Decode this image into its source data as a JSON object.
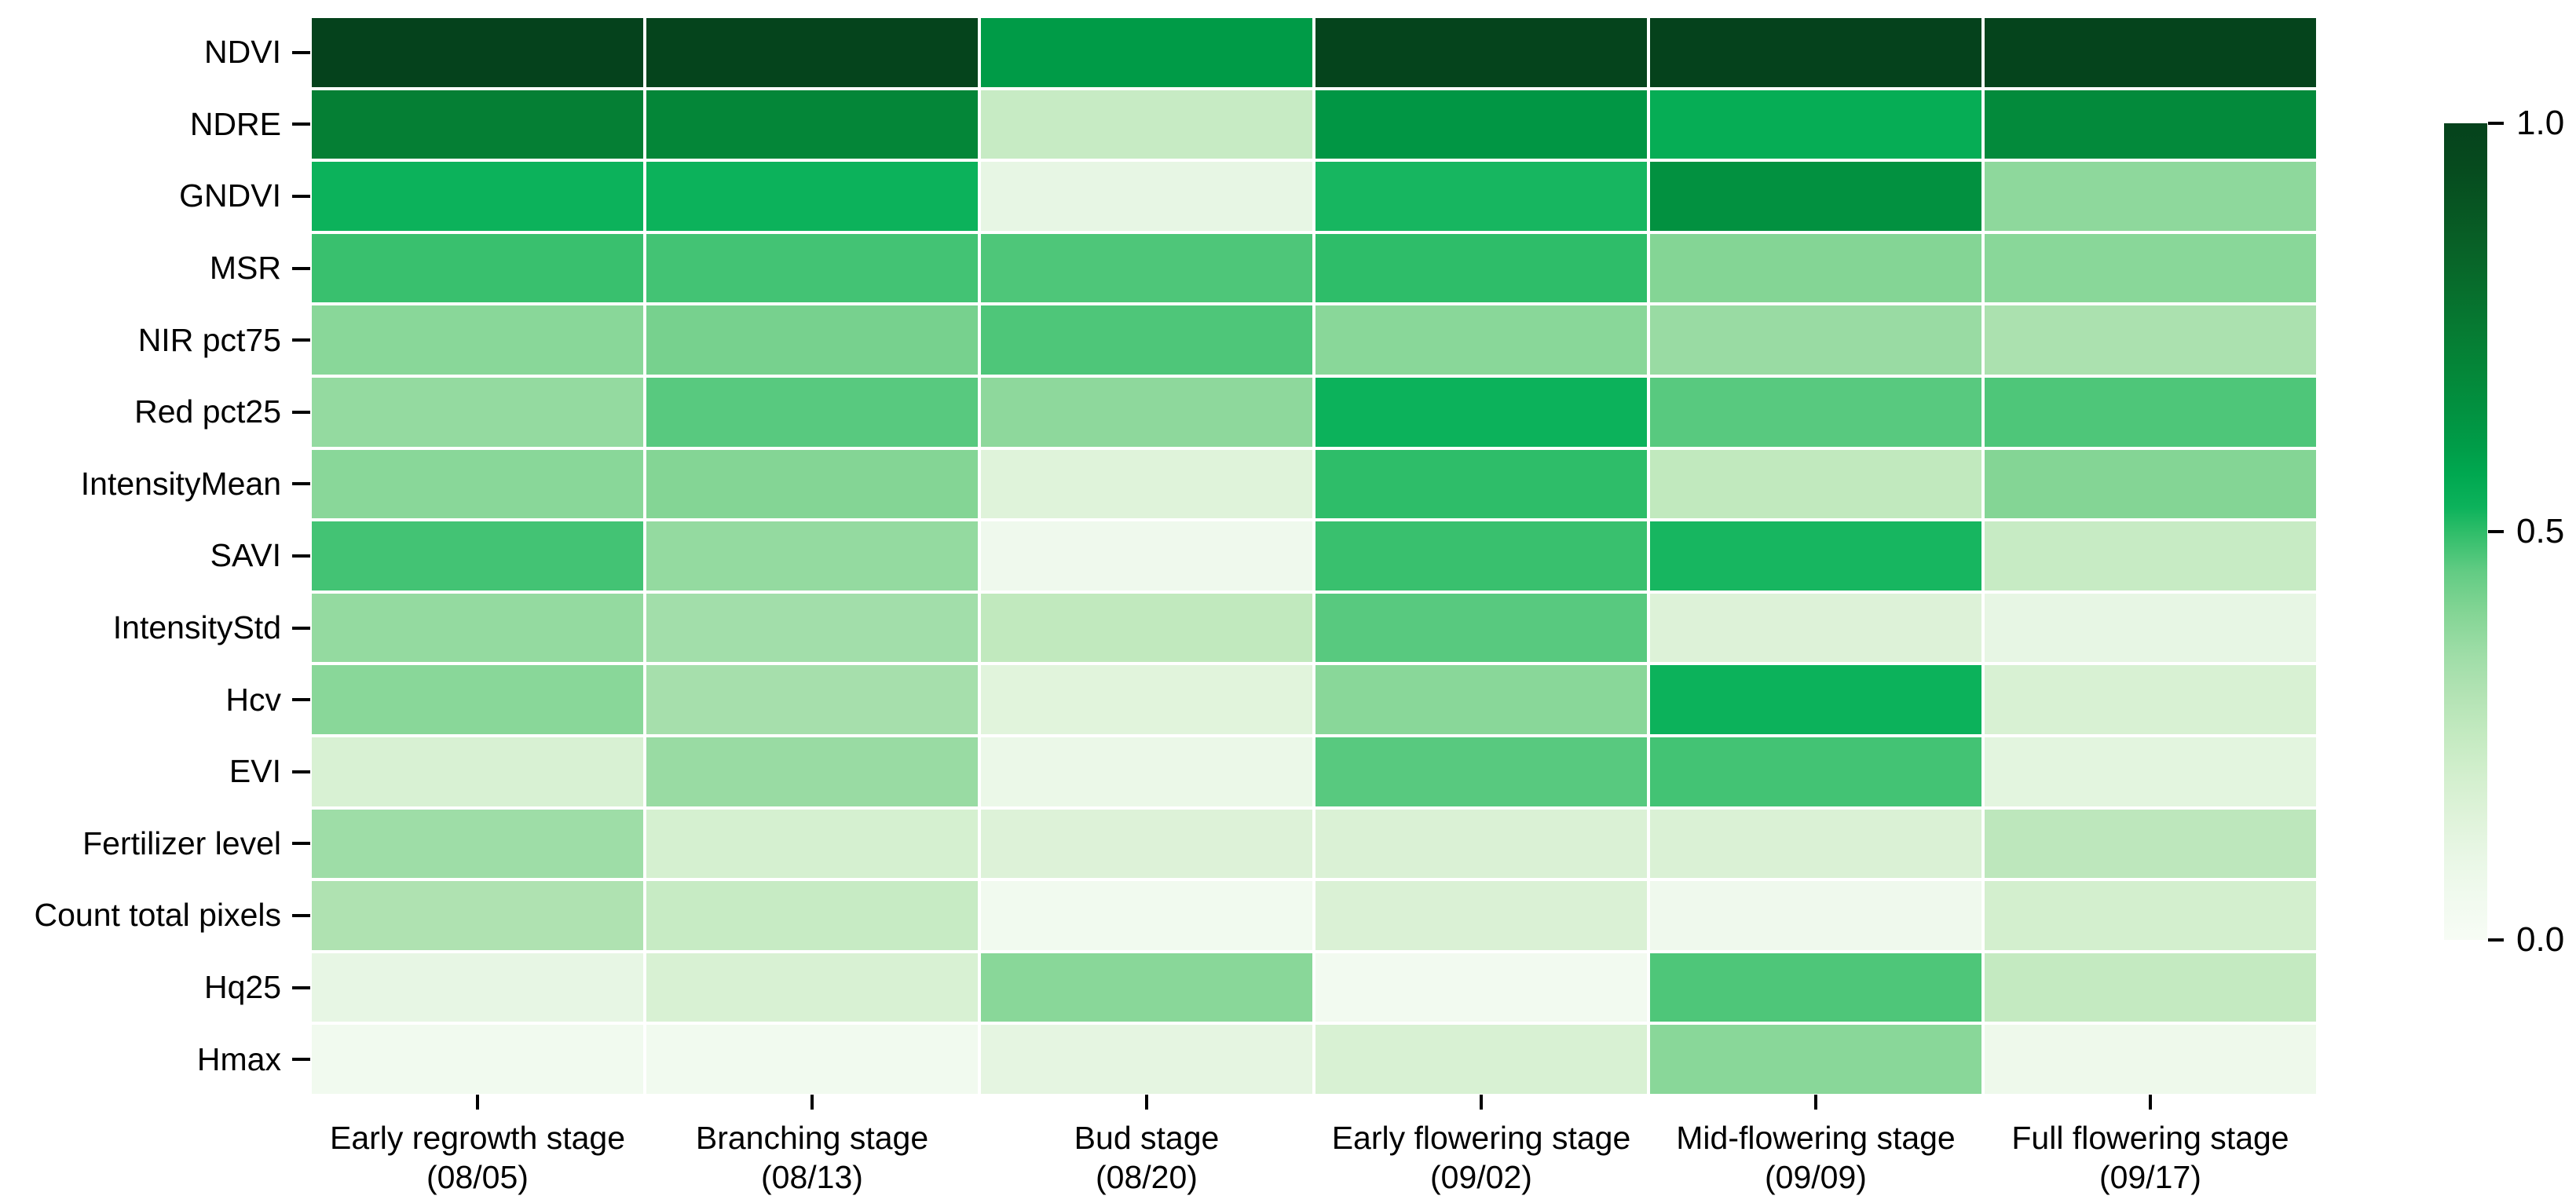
{
  "chart_data": {
    "type": "heatmap",
    "title": "",
    "rows": [
      "NDVI",
      "NDRE",
      "GNDVI",
      "MSR",
      "NIR pct75",
      "Red pct25",
      "IntensityMean",
      "SAVI",
      "IntensityStd",
      "Hcv",
      "EVI",
      "Fertilizer level",
      "Count total pixels",
      "Hq25",
      "Hmax"
    ],
    "columns": [
      {
        "stage": "Early regrowth stage",
        "date": "(08/05)"
      },
      {
        "stage": "Branching stage",
        "date": "(08/13)"
      },
      {
        "stage": "Bud stage",
        "date": "(08/20)"
      },
      {
        "stage": "Early flowering stage",
        "date": "(09/02)"
      },
      {
        "stage": "Mid-flowering stage",
        "date": "(09/09)"
      },
      {
        "stage": "Full flowering stage",
        "date": "(09/17)"
      }
    ],
    "values": [
      [
        1.0,
        0.99,
        0.61,
        0.99,
        1.0,
        0.99
      ],
      [
        0.73,
        0.7,
        0.24,
        0.63,
        0.55,
        0.68
      ],
      [
        0.53,
        0.53,
        0.11,
        0.52,
        0.65,
        0.38
      ],
      [
        0.49,
        0.48,
        0.47,
        0.5,
        0.4,
        0.39
      ],
      [
        0.39,
        0.42,
        0.47,
        0.39,
        0.36,
        0.32
      ],
      [
        0.37,
        0.46,
        0.38,
        0.53,
        0.46,
        0.47
      ],
      [
        0.39,
        0.4,
        0.15,
        0.5,
        0.26,
        0.4
      ],
      [
        0.48,
        0.37,
        0.06,
        0.49,
        0.52,
        0.24
      ],
      [
        0.37,
        0.34,
        0.26,
        0.46,
        0.16,
        0.11
      ],
      [
        0.39,
        0.33,
        0.14,
        0.39,
        0.53,
        0.18
      ],
      [
        0.18,
        0.36,
        0.09,
        0.46,
        0.48,
        0.13
      ],
      [
        0.35,
        0.19,
        0.16,
        0.17,
        0.17,
        0.27
      ],
      [
        0.31,
        0.24,
        0.05,
        0.17,
        0.06,
        0.2
      ],
      [
        0.11,
        0.18,
        0.39,
        0.04,
        0.47,
        0.25
      ],
      [
        0.05,
        0.05,
        0.12,
        0.18,
        0.39,
        0.07
      ]
    ],
    "vmin": 0.0,
    "vmax": 1.0,
    "grid": false,
    "legend_position": "right-colorbar",
    "colorbar": {
      "ticks": [
        {
          "label": "1.0",
          "value": 1.0
        },
        {
          "label": "0.5",
          "value": 0.5
        },
        {
          "label": "0.0",
          "value": 0.0
        }
      ],
      "colormap_stops": [
        [
          0.0,
          "#f7fcf5"
        ],
        [
          0.05,
          "#f1faef"
        ],
        [
          0.1,
          "#e9f7e6"
        ],
        [
          0.15,
          "#dff3da"
        ],
        [
          0.2,
          "#d3efce"
        ],
        [
          0.25,
          "#c4eac1"
        ],
        [
          0.3,
          "#b3e3b4"
        ],
        [
          0.35,
          "#9edda7"
        ],
        [
          0.4,
          "#84d595"
        ],
        [
          0.45,
          "#63cc84"
        ],
        [
          0.5,
          "#2ebd69"
        ],
        [
          0.53,
          "#0cb25b"
        ],
        [
          0.57,
          "#00a850"
        ],
        [
          0.6,
          "#009e49"
        ],
        [
          0.65,
          "#029140"
        ],
        [
          0.7,
          "#048638"
        ],
        [
          0.75,
          "#067a32"
        ],
        [
          0.8,
          "#076d2c"
        ],
        [
          0.85,
          "#086127"
        ],
        [
          0.9,
          "#075522"
        ],
        [
          0.95,
          "#064a1e"
        ],
        [
          1.0,
          "#05421c"
        ]
      ]
    },
    "colors": {
      "background": "#ffffff",
      "tick_color": "#000000",
      "text_color": "#000000",
      "cell_gap_color": "#ffffff"
    }
  }
}
